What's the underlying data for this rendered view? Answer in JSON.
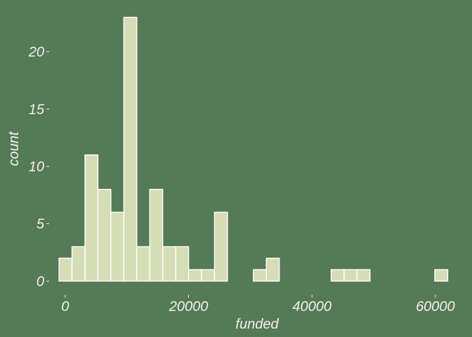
{
  "chart_data": {
    "type": "histogram",
    "title": "",
    "xlabel": "funded",
    "ylabel": "count",
    "bin_width": 2100,
    "x_bins": [
      {
        "x0": -1000,
        "x1": 1100,
        "count": 2
      },
      {
        "x0": 1100,
        "x1": 3200,
        "count": 3
      },
      {
        "x0": 3200,
        "x1": 5300,
        "count": 11
      },
      {
        "x0": 5300,
        "x1": 7400,
        "count": 8
      },
      {
        "x0": 7400,
        "x1": 9500,
        "count": 6
      },
      {
        "x0": 9500,
        "x1": 11600,
        "count": 23
      },
      {
        "x0": 11600,
        "x1": 13700,
        "count": 3
      },
      {
        "x0": 13700,
        "x1": 15800,
        "count": 8
      },
      {
        "x0": 15800,
        "x1": 17900,
        "count": 3
      },
      {
        "x0": 17900,
        "x1": 20000,
        "count": 3
      },
      {
        "x0": 20000,
        "x1": 22100,
        "count": 1
      },
      {
        "x0": 22100,
        "x1": 24200,
        "count": 1
      },
      {
        "x0": 24200,
        "x1": 26300,
        "count": 6
      },
      {
        "x0": 26300,
        "x1": 28400,
        "count": 0
      },
      {
        "x0": 28400,
        "x1": 30500,
        "count": 0
      },
      {
        "x0": 30500,
        "x1": 32600,
        "count": 1
      },
      {
        "x0": 32600,
        "x1": 34700,
        "count": 2
      },
      {
        "x0": 34700,
        "x1": 36800,
        "count": 0
      },
      {
        "x0": 36800,
        "x1": 38900,
        "count": 0
      },
      {
        "x0": 38900,
        "x1": 41000,
        "count": 0
      },
      {
        "x0": 41000,
        "x1": 43100,
        "count": 0
      },
      {
        "x0": 43100,
        "x1": 45200,
        "count": 1
      },
      {
        "x0": 45200,
        "x1": 47300,
        "count": 1
      },
      {
        "x0": 47300,
        "x1": 49400,
        "count": 1
      },
      {
        "x0": 49400,
        "x1": 51500,
        "count": 0
      },
      {
        "x0": 51500,
        "x1": 53600,
        "count": 0
      },
      {
        "x0": 53600,
        "x1": 55700,
        "count": 0
      },
      {
        "x0": 55700,
        "x1": 57800,
        "count": 0
      },
      {
        "x0": 57800,
        "x1": 59900,
        "count": 0
      },
      {
        "x0": 59900,
        "x1": 62000,
        "count": 1
      }
    ],
    "xlim": [
      -2600,
      63200
    ],
    "ylim": [
      -1.2,
      24.2
    ],
    "x_ticks": [
      0,
      20000,
      40000,
      60000
    ],
    "y_ticks": [
      0,
      5,
      10,
      15,
      20
    ],
    "grid": false,
    "colors": {
      "background": "#557a56",
      "bar_fill": "#d5ddb7",
      "bar_outline": "#ffffff",
      "text": "#f4f2ea"
    }
  }
}
